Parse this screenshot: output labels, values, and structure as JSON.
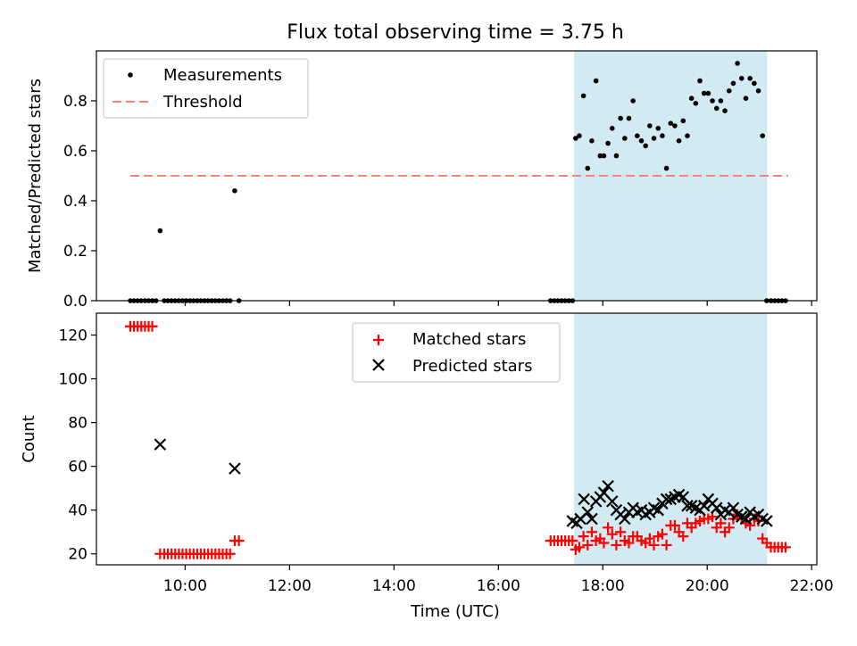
{
  "title": "Flux total observing time = 3.75 h",
  "chart_data": [
    {
      "type": "scatter",
      "ylabel": "Matched/Predicted stars",
      "xlim": [
        8.3,
        22.1
      ],
      "ylim": [
        0,
        1.0
      ],
      "yticks": [
        0.0,
        0.2,
        0.4,
        0.6,
        0.8
      ],
      "ytick_labels": [
        "0.0",
        "0.2",
        "0.4",
        "0.6",
        "0.8"
      ],
      "xticks": [
        10,
        12,
        14,
        16,
        18,
        20,
        22
      ],
      "shaded_region": {
        "x": [
          17.45,
          21.15
        ],
        "color": "#add8e6"
      },
      "grid": false,
      "legend_placement": "upper-left",
      "legend": [
        {
          "label": "Measurements",
          "marker": "dot",
          "color": "#000000"
        },
        {
          "label": "Threshold",
          "marker": "dashed-line",
          "color": "#ff7f7f"
        }
      ],
      "threshold": {
        "name": "Threshold",
        "y": 0.5,
        "x": [
          8.95,
          21.55
        ],
        "color": "#ff7f7f"
      },
      "series": [
        {
          "name": "Measurements",
          "color": "#000000",
          "x": [
            8.95,
            9.02,
            9.09,
            9.16,
            9.23,
            9.3,
            9.37,
            9.44,
            9.52,
            9.6,
            9.67,
            9.74,
            9.81,
            9.88,
            9.95,
            10.02,
            10.09,
            10.16,
            10.23,
            10.3,
            10.37,
            10.44,
            10.51,
            10.58,
            10.65,
            10.72,
            10.79,
            10.86,
            10.95,
            11.03,
            17.0,
            17.07,
            17.14,
            17.21,
            17.28,
            17.35,
            17.42,
            17.48,
            17.55,
            17.63,
            17.71,
            17.79,
            17.87,
            17.95,
            18.02,
            18.1,
            18.18,
            18.26,
            18.34,
            18.42,
            18.5,
            18.58,
            18.66,
            18.74,
            18.82,
            18.9,
            18.98,
            19.06,
            19.14,
            19.22,
            19.3,
            19.38,
            19.46,
            19.54,
            19.62,
            19.7,
            19.78,
            19.86,
            19.94,
            20.02,
            20.1,
            20.18,
            20.26,
            20.34,
            20.42,
            20.5,
            20.58,
            20.66,
            20.74,
            20.82,
            20.9,
            20.98,
            21.06,
            21.14,
            21.22,
            21.29,
            21.36,
            21.43,
            21.5
          ],
          "y": [
            0,
            0,
            0,
            0,
            0,
            0,
            0,
            0,
            0.28,
            0,
            0,
            0,
            0,
            0,
            0,
            0,
            0,
            0,
            0,
            0,
            0,
            0,
            0,
            0,
            0,
            0,
            0,
            0,
            0.44,
            0,
            0,
            0,
            0,
            0,
            0,
            0,
            0,
            0.65,
            0.66,
            0.82,
            0.53,
            0.64,
            0.88,
            0.58,
            0.58,
            0.63,
            0.69,
            0.58,
            0.73,
            0.65,
            0.73,
            0.8,
            0.66,
            0.64,
            0.62,
            0.7,
            0.65,
            0.69,
            0.66,
            0.53,
            0.71,
            0.7,
            0.64,
            0.72,
            0.66,
            0.81,
            0.79,
            0.88,
            0.83,
            0.83,
            0.8,
            0.77,
            0.8,
            0.76,
            0.84,
            0.87,
            0.95,
            0.89,
            0.81,
            0.89,
            0.87,
            0.84,
            0.66,
            0,
            0,
            0,
            0,
            0,
            0
          ]
        }
      ]
    },
    {
      "type": "scatter",
      "xlabel": "Time (UTC)",
      "ylabel": "Count",
      "xlim": [
        8.3,
        22.1
      ],
      "ylim": [
        15,
        130
      ],
      "yticks": [
        20,
        40,
        60,
        80,
        100,
        120
      ],
      "ytick_labels": [
        "20",
        "40",
        "60",
        "80",
        "100",
        "120"
      ],
      "xticks": [
        10,
        12,
        14,
        16,
        18,
        20,
        22
      ],
      "xtick_labels": [
        "10:00",
        "12:00",
        "14:00",
        "16:00",
        "18:00",
        "20:00",
        "22:00"
      ],
      "shaded_region": {
        "x": [
          17.45,
          21.15
        ],
        "color": "#add8e6"
      },
      "grid": false,
      "legend_placement": "upper-center",
      "legend": [
        {
          "label": "Matched stars",
          "marker": "plus",
          "color": "#ff0000"
        },
        {
          "label": "Predicted stars",
          "marker": "x",
          "color": "#000000"
        }
      ],
      "series": [
        {
          "name": "Matched stars",
          "color": "#ff0000",
          "marker": "plus",
          "x": [
            8.95,
            9.02,
            9.09,
            9.16,
            9.23,
            9.3,
            9.37,
            9.52,
            9.6,
            9.67,
            9.74,
            9.81,
            9.88,
            9.95,
            10.02,
            10.09,
            10.16,
            10.23,
            10.3,
            10.37,
            10.44,
            10.51,
            10.58,
            10.65,
            10.72,
            10.79,
            10.86,
            10.95,
            11.03,
            17.0,
            17.07,
            17.14,
            17.21,
            17.28,
            17.35,
            17.42,
            17.48,
            17.55,
            17.63,
            17.71,
            17.79,
            17.87,
            17.95,
            18.02,
            18.1,
            18.18,
            18.26,
            18.34,
            18.42,
            18.5,
            18.58,
            18.66,
            18.74,
            18.82,
            18.9,
            18.98,
            19.06,
            19.14,
            19.22,
            19.3,
            19.38,
            19.46,
            19.54,
            19.62,
            19.7,
            19.78,
            19.86,
            19.94,
            20.02,
            20.1,
            20.18,
            20.26,
            20.34,
            20.42,
            20.5,
            20.58,
            20.66,
            20.74,
            20.82,
            20.9,
            20.98,
            21.06,
            21.14,
            21.22,
            21.29,
            21.36,
            21.43,
            21.5
          ],
          "y": [
            124,
            124,
            124,
            124,
            124,
            124,
            124,
            20,
            20,
            20,
            20,
            20,
            20,
            20,
            20,
            20,
            20,
            20,
            20,
            20,
            20,
            20,
            20,
            20,
            20,
            20,
            20,
            26,
            26,
            26,
            26,
            26,
            26,
            26,
            26,
            26,
            22,
            23,
            28,
            24,
            30,
            26,
            27,
            25,
            32,
            29,
            24,
            30,
            26,
            25,
            28,
            28,
            26,
            25,
            27,
            24,
            28,
            29,
            24,
            33,
            33,
            30,
            28,
            34,
            32,
            34,
            35,
            36,
            36,
            37,
            32,
            34,
            30,
            32,
            36,
            38,
            36,
            34,
            33,
            36,
            35,
            27,
            25,
            23,
            23,
            23,
            23,
            23
          ]
        },
        {
          "name": "Predicted stars",
          "color": "#000000",
          "marker": "x",
          "x": [
            9.52,
            10.95,
            17.42,
            17.5,
            17.57,
            17.64,
            17.71,
            17.79,
            17.87,
            17.95,
            18.02,
            18.1,
            18.18,
            18.26,
            18.34,
            18.42,
            18.5,
            18.58,
            18.66,
            18.74,
            18.82,
            18.9,
            18.98,
            19.06,
            19.14,
            19.22,
            19.3,
            19.38,
            19.46,
            19.54,
            19.62,
            19.7,
            19.78,
            19.86,
            19.94,
            20.02,
            20.1,
            20.18,
            20.26,
            20.34,
            20.42,
            20.5,
            20.58,
            20.66,
            20.74,
            20.82,
            20.9,
            20.98,
            21.06,
            21.14
          ],
          "y": [
            70,
            59,
            35,
            34,
            36,
            45,
            39,
            36,
            44,
            46,
            48,
            51,
            44,
            40,
            38,
            36,
            39,
            41,
            39,
            40,
            38,
            39,
            41,
            40,
            43,
            45,
            45,
            46,
            47,
            46,
            42,
            42,
            41,
            40,
            42,
            45,
            43,
            41,
            38,
            40,
            39,
            41,
            38,
            37,
            36,
            39,
            37,
            38,
            36,
            35
          ]
        }
      ]
    }
  ]
}
